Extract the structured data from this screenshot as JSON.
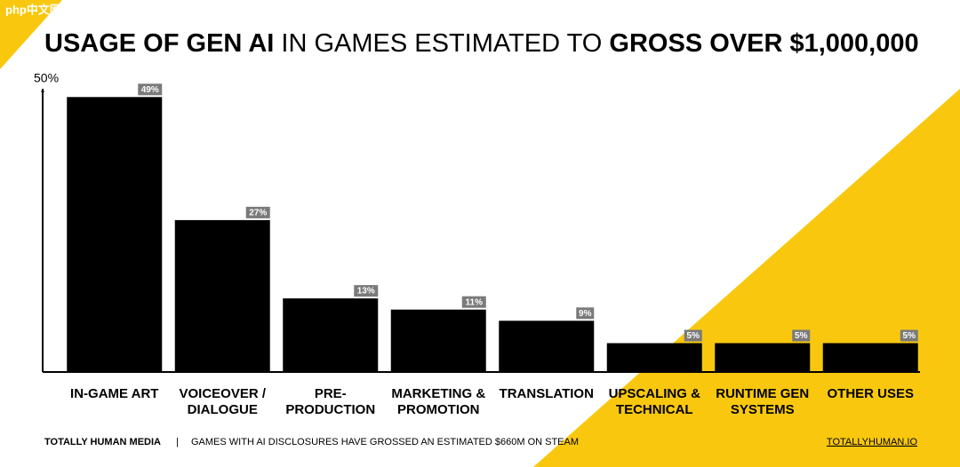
{
  "watermark": "php中文网",
  "chart_data": {
    "type": "bar",
    "title": [
      "USAGE OF GEN AI",
      "IN GAMES ESTIMATED TO",
      "GROSS OVER $1,000,000"
    ],
    "categories": [
      [
        "IN-GAME ART"
      ],
      [
        "VOICEOVER /",
        "DIALOGUE"
      ],
      [
        "PRE-",
        "PRODUCTION"
      ],
      [
        "MARKETING &",
        "PROMOTION"
      ],
      [
        "TRANSLATION"
      ],
      [
        "UPSCALING &",
        "TECHNICAL"
      ],
      [
        "RUNTIME GEN",
        "SYSTEMS"
      ],
      [
        "OTHER USES"
      ]
    ],
    "values": [
      49,
      27,
      13,
      11,
      9,
      5,
      5,
      5
    ],
    "value_labels": [
      "49%",
      "27%",
      "13%",
      "11%",
      "9%",
      "5%",
      "5%",
      "5%"
    ],
    "color": "#000000",
    "label_color": "#7a7a7a",
    "ylim": [
      0,
      50
    ],
    "yticks": [
      {
        "value": 50,
        "label": "50%"
      }
    ]
  },
  "footer": {
    "source": "TOTALLY HUMAN MEDIA",
    "separator": "|",
    "note": "GAMES WITH AI DISCLOSURES HAVE GROSSED AN ESTIMATED $660M ON STEAM",
    "link": "TOTALLYHUMAN.IO"
  }
}
